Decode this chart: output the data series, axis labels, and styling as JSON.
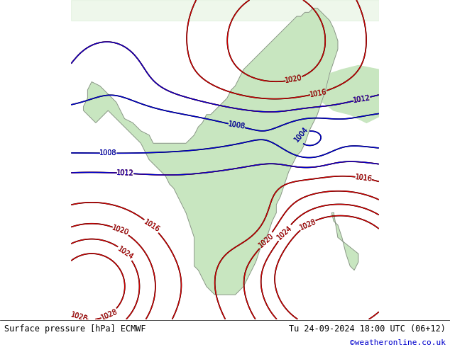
{
  "title_left": "Surface pressure [hPa] ECMWF",
  "title_right": "Tu 24-09-2024 18:00 UTC (06+12)",
  "credit": "©weatheronline.co.uk",
  "bg_color": "#e8e8e8",
  "land_color": "#c8e6c0",
  "ocean_color": "#dce8f0",
  "fig_width": 6.34,
  "fig_height": 4.9,
  "dpi": 100,
  "bottom_bar_color": "#f0f0f0",
  "isobar_black_color": "#000000",
  "isobar_red_color": "#cc0000",
  "isobar_blue_color": "#0000cc",
  "label_fontsize": 7,
  "footer_fontsize": 8.5,
  "credit_color": "#0000cc"
}
